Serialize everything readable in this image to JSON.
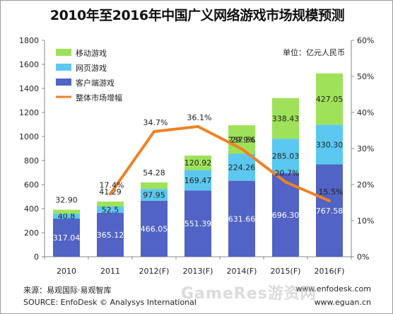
{
  "chart_data": {
    "type": "bar",
    "title": "2010年至2016年中国广义网络游戏市场规模预测",
    "unit_note": "单位：亿元人民币",
    "categories": [
      "2010",
      "2011",
      "2012(F)",
      "2013(F)",
      "2014(F)",
      "2015(F)",
      "2016(F)"
    ],
    "stacked": true,
    "series": [
      {
        "name": "客户端游戏",
        "color": "#5163c4",
        "values": [
          317.04,
          365.12,
          466.05,
          551.39,
          631.66,
          696.3,
          767.58
        ]
      },
      {
        "name": "网页游戏",
        "color": "#5bc8f0",
        "values": [
          40.8,
          52.5,
          97.95,
          169.47,
          224.26,
          285.03,
          330.3
        ]
      },
      {
        "name": "移动游戏",
        "color": "#9ee25a",
        "values": [
          32.9,
          41.29,
          54.28,
          120.92,
          237.56,
          338.43,
          427.05
        ]
      }
    ],
    "value_labels": [
      [
        "317.04",
        "365.12",
        "466.05",
        "551.39",
        "631.66",
        "696.30",
        "767.58"
      ],
      [
        "40.8",
        "52.5",
        "97.95",
        "169.47",
        "224.26",
        "285.03",
        "330.30"
      ],
      [
        "32.90",
        "41.29",
        "54.28",
        "120.92",
        "237.56",
        "338.43",
        "427.05"
      ]
    ],
    "line": {
      "name": "整体市场增幅",
      "color": "#f08124",
      "start_index": 1,
      "values": [
        17.4,
        34.7,
        36.1,
        29.9,
        20.7,
        15.5
      ],
      "labels": [
        "17.4%",
        "34.7%",
        "36.1%",
        "29.9%",
        "20.7%",
        "15.5%"
      ]
    },
    "y_left": {
      "min": 0,
      "max": 1800,
      "ticks": [
        "0",
        "200",
        "400",
        "600",
        "800",
        "1000",
        "1200",
        "1400",
        "1600",
        "1800"
      ]
    },
    "y_right": {
      "min": 0,
      "max": 60,
      "ticks": [
        "0%",
        "10%",
        "20%",
        "30%",
        "40%",
        "50%",
        "60%"
      ]
    },
    "legend_position": "top-left",
    "grid": false
  },
  "footer": {
    "source_cn": "来源：易观国际·易观智库",
    "source_en": "SOURCE: EnfoDesk © Analysys International",
    "url1": "www.enfodesk.com",
    "url2": "www.eguan.cn"
  },
  "watermark": "GameRes游资网"
}
